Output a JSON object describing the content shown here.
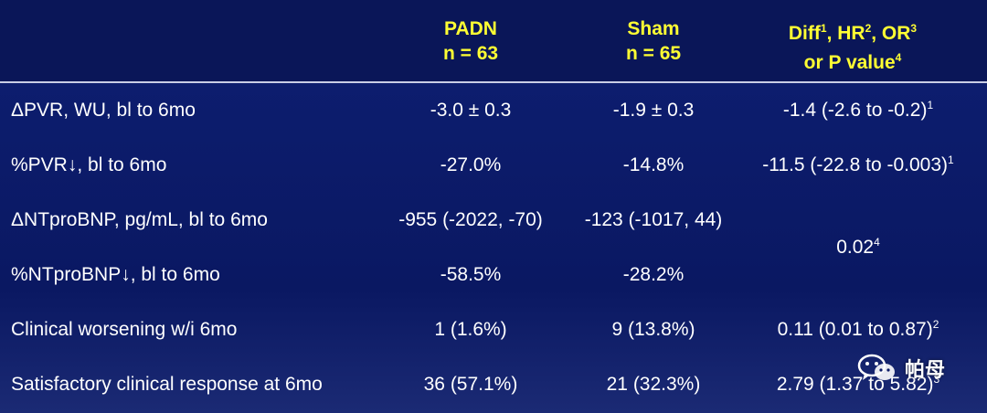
{
  "header": {
    "padn_line1": "PADN",
    "padn_line2": "n = 63",
    "sham_line1": "Sham",
    "sham_line2": "n = 65",
    "diff_line1_a": "Diff",
    "diff_line1_a_sup": "1",
    "diff_line1_b": ", HR",
    "diff_line1_b_sup": "2",
    "diff_line1_c": ", OR",
    "diff_line1_c_sup": "3",
    "diff_line2": "or P value",
    "diff_line2_sup": "4"
  },
  "rows": [
    {
      "label": "ΔPVR, WU, bl to 6mo",
      "padn": "-3.0 ± 0.3",
      "sham": "-1.9 ± 0.3",
      "diff": "-1.4 (-2.6 to -0.2)",
      "diff_sup": "1"
    },
    {
      "label": "%PVR↓, bl to 6mo",
      "padn": "-27.0%",
      "sham": "-14.8%",
      "diff": "-11.5 (-22.8 to -0.003)",
      "diff_sup": "1"
    },
    {
      "label": "ΔNTproBNP, pg/mL, bl to 6mo",
      "padn": "-955 (-2022, -70)",
      "sham": "-123 (-1017, 44)",
      "diff": "",
      "diff_sup": ""
    },
    {
      "label": "%NTproBNP↓, bl to 6mo",
      "padn": "-58.5%",
      "sham": "-28.2%",
      "diff": "",
      "diff_sup": ""
    },
    {
      "label": "Clinical worsening w/i 6mo",
      "padn": "1 (1.6%)",
      "sham": "9 (13.8%)",
      "diff": "0.11 (0.01 to 0.87)",
      "diff_sup": "2"
    },
    {
      "label": "Satisfactory clinical response at 6mo",
      "padn": "36 (57.1%)",
      "sham": "21 (32.3%)",
      "diff": "2.79 (1.37 to 5.82)",
      "diff_sup": "3"
    }
  ],
  "merged_ntprobnp": {
    "value": "0.02",
    "sup": "4"
  },
  "watermark": {
    "text": "帕母",
    "icon": "wechat-icon"
  },
  "colors": {
    "background": "#0b1a66",
    "header_text": "#ffff33",
    "body_text": "#ffffff"
  }
}
